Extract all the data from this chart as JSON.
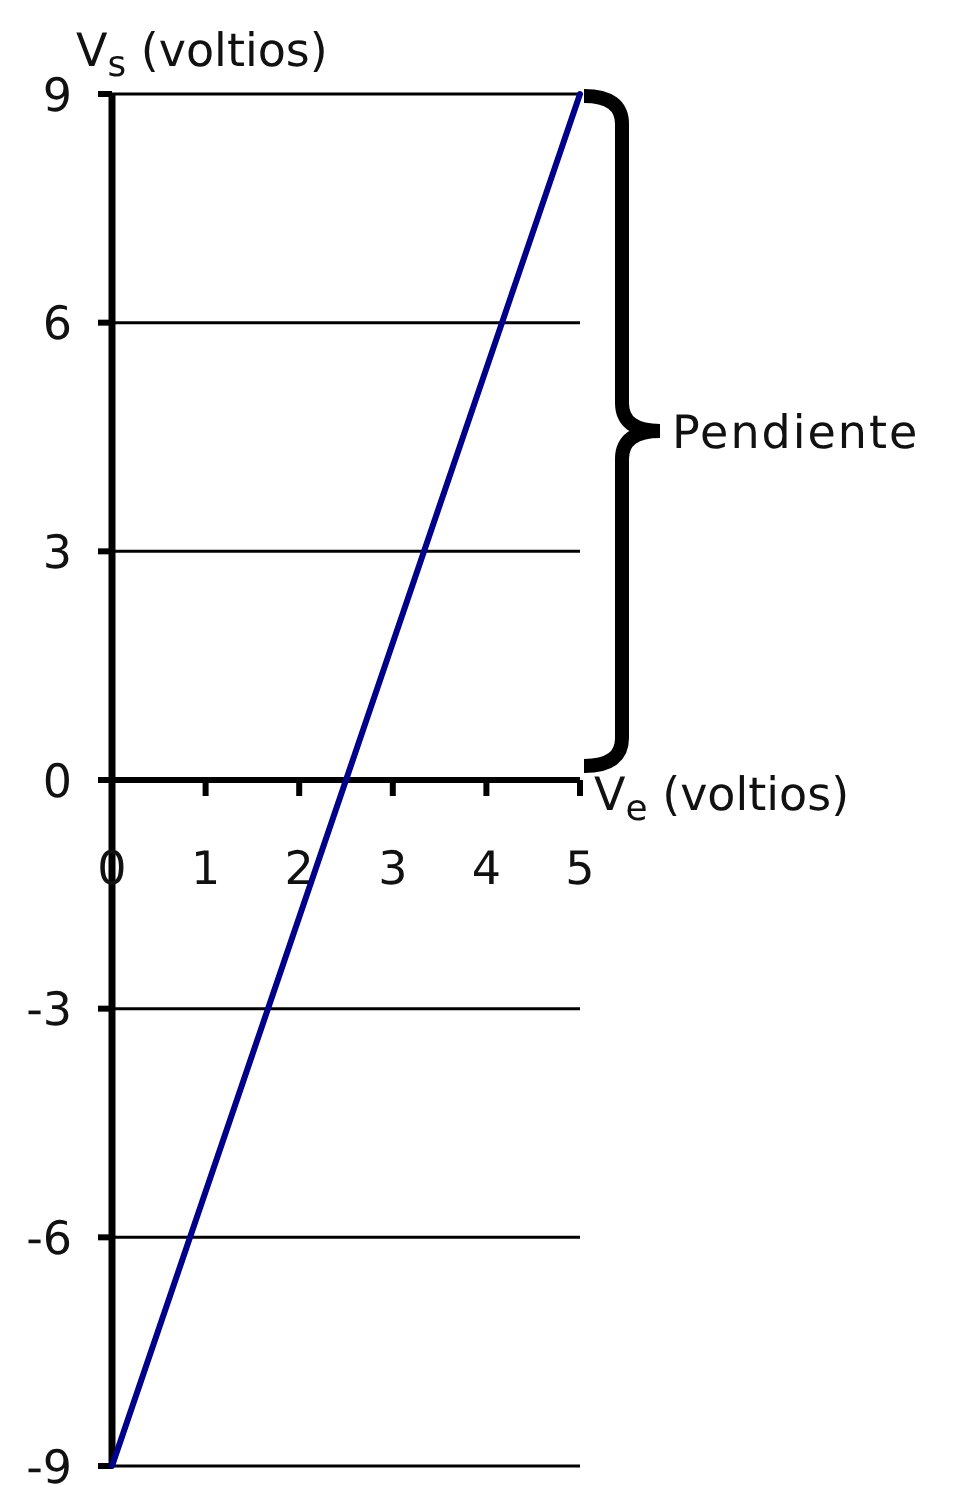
{
  "chart_data": {
    "type": "line",
    "xlabel": "V$_{e}$ (voltios)",
    "ylabel": "V$_{s}$ (voltios)",
    "annotations": [
      "Pendiente"
    ],
    "xlim": [
      0,
      5
    ],
    "xticks": [
      0,
      1,
      2,
      3,
      4,
      5
    ],
    "ylim": [
      -9,
      9
    ],
    "yticks": [
      -9,
      -6,
      -3,
      0,
      3,
      6,
      9
    ],
    "grid": "y",
    "x": [
      0,
      5
    ],
    "values": [
      -9,
      9
    ],
    "color": "#00008b"
  }
}
